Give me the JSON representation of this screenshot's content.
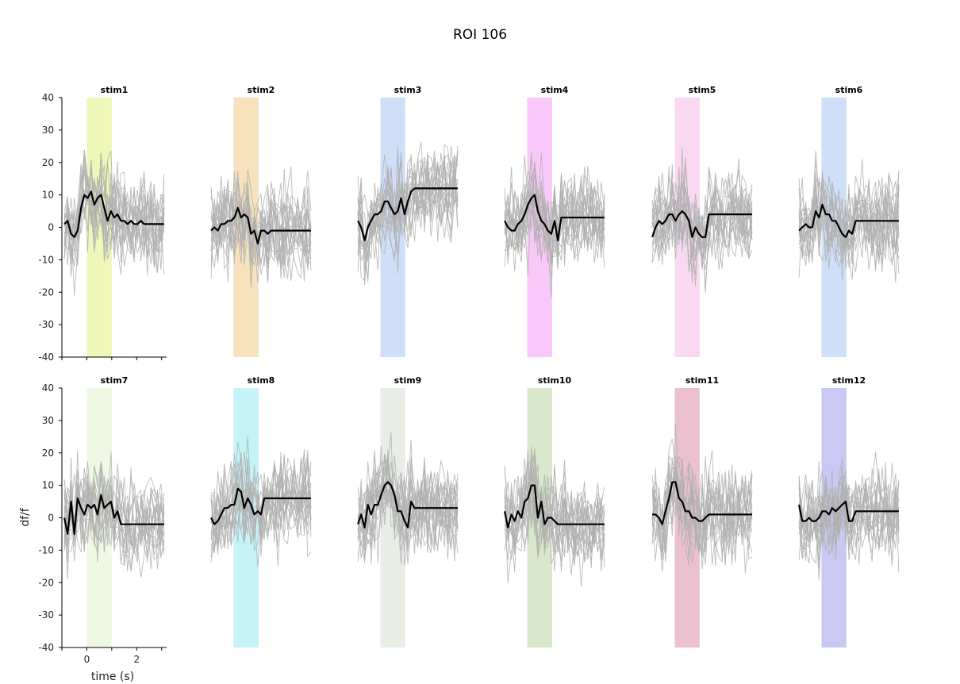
{
  "title": "ROI 106",
  "chart_data": {
    "type": "line",
    "layout": {
      "rows": 2,
      "cols": 6
    },
    "xlabel": "time (s)",
    "ylabel": "df/f",
    "ylim": [
      -40,
      40
    ],
    "xlim": [
      -1.0,
      3.2
    ],
    "yticks": [
      -40,
      -30,
      -20,
      -10,
      0,
      10,
      20,
      30,
      40
    ],
    "xticks": [
      0,
      2
    ],
    "x": [
      -0.9,
      -0.77,
      -0.63,
      -0.5,
      -0.37,
      -0.23,
      -0.1,
      0.03,
      0.17,
      0.3,
      0.43,
      0.57,
      0.7,
      0.83,
      0.97,
      1.1,
      1.23,
      1.37,
      1.5,
      1.63,
      1.77,
      1.9,
      2.03,
      2.17,
      2.3,
      2.43,
      2.57,
      2.7,
      2.83,
      2.97,
      3.1
    ],
    "trial_color": "#b0b0b0",
    "mean_color": "#000000",
    "stimulus_window": [
      0,
      1
    ],
    "panels": [
      {
        "name": "stim1",
        "shade_color": "#eef7b8",
        "mean": [
          1,
          2,
          -2,
          -3,
          -1,
          6,
          10,
          9,
          11,
          7,
          9,
          10,
          6,
          2,
          5,
          3,
          4,
          2,
          2,
          1,
          2,
          1,
          1,
          2,
          1,
          1,
          1,
          1,
          1,
          1,
          1
        ]
      },
      {
        "name": "stim2",
        "shade_color": "#f7e2bd",
        "mean": [
          -1,
          0,
          -1,
          1,
          1,
          2,
          2,
          3,
          6,
          3,
          4,
          3,
          -2,
          -1,
          -5,
          -1,
          -1,
          -2,
          -1,
          -1,
          -1,
          -1,
          -1,
          -1,
          -1,
          -1,
          -1,
          -1,
          -1,
          -1,
          -1
        ]
      },
      {
        "name": "stim3",
        "shade_color": "#cfdff8",
        "mean": [
          2,
          0,
          -4,
          0,
          2,
          4,
          4,
          5,
          8,
          8,
          6,
          4,
          5,
          9,
          4,
          8,
          11,
          12,
          12,
          12,
          12,
          12,
          12,
          12,
          12,
          12,
          12,
          12,
          12,
          12,
          12
        ]
      },
      {
        "name": "stim4",
        "shade_color": "#f8c8f8",
        "mean": [
          2,
          0,
          -1,
          -1,
          1,
          2,
          4,
          7,
          9,
          10,
          5,
          2,
          1,
          -1,
          -2,
          2,
          -4,
          3,
          3,
          3,
          3,
          3,
          3,
          3,
          3,
          3,
          3,
          3,
          3,
          3,
          3
        ]
      },
      {
        "name": "stim5",
        "shade_color": "#f9d9f1",
        "mean": [
          -3,
          0,
          2,
          1,
          2,
          4,
          4,
          2,
          4,
          5,
          4,
          2,
          -3,
          0,
          -2,
          -3,
          -3,
          4,
          4,
          4,
          4,
          4,
          4,
          4,
          4,
          4,
          4,
          4,
          4,
          4,
          4
        ]
      },
      {
        "name": "stim6",
        "shade_color": "#cfdff8",
        "mean": [
          -1,
          0,
          1,
          0,
          0,
          5,
          3,
          7,
          4,
          4,
          2,
          2,
          0,
          -2,
          -3,
          -1,
          -2,
          2,
          2,
          2,
          2,
          2,
          2,
          2,
          2,
          2,
          2,
          2,
          2,
          2,
          2
        ]
      },
      {
        "name": "stim7",
        "shade_color": "#eef8e2",
        "mean": [
          0,
          -5,
          5,
          -5,
          6,
          3,
          1,
          4,
          3,
          4,
          1,
          7,
          3,
          4,
          5,
          0,
          2,
          -2,
          -2,
          -2,
          -2,
          -2,
          -2,
          -2,
          -2,
          -2,
          -2,
          -2,
          -2,
          -2,
          -2
        ]
      },
      {
        "name": "stim8",
        "shade_color": "#c6f3f8",
        "mean": [
          0,
          -2,
          -1,
          1,
          3,
          3,
          4,
          4,
          9,
          8,
          3,
          6,
          4,
          1,
          2,
          1,
          6,
          6,
          6,
          6,
          6,
          6,
          6,
          6,
          6,
          6,
          6,
          6,
          6,
          6,
          6
        ]
      },
      {
        "name": "stim9",
        "shade_color": "#e8ede6",
        "mean": [
          -2,
          1,
          -3,
          4,
          1,
          4,
          4,
          7,
          10,
          11,
          10,
          7,
          2,
          2,
          -1,
          -3,
          5,
          3,
          3,
          3,
          3,
          3,
          3,
          3,
          3,
          3,
          3,
          3,
          3,
          3,
          3
        ]
      },
      {
        "name": "stim10",
        "shade_color": "#d9e8cb",
        "mean": [
          2,
          -3,
          1,
          -1,
          2,
          0,
          5,
          6,
          10,
          10,
          0,
          5,
          -2,
          0,
          0,
          -1,
          -2,
          -2,
          -2,
          -2,
          -2,
          -2,
          -2,
          -2,
          -2,
          -2,
          -2,
          -2,
          -2,
          -2,
          -2
        ]
      },
      {
        "name": "stim11",
        "shade_color": "#ecc1cf",
        "mean": [
          1,
          1,
          0,
          -2,
          2,
          6,
          11,
          11,
          6,
          5,
          2,
          2,
          0,
          0,
          -1,
          -1,
          0,
          1,
          1,
          1,
          1,
          1,
          1,
          1,
          1,
          1,
          1,
          1,
          1,
          1,
          1
        ]
      },
      {
        "name": "stim12",
        "shade_color": "#c9c9f4",
        "mean": [
          4,
          -1,
          -1,
          0,
          -1,
          -1,
          0,
          2,
          2,
          1,
          3,
          2,
          3,
          4,
          5,
          -1,
          -1,
          2,
          2,
          2,
          2,
          2,
          2,
          2,
          2,
          2,
          2,
          2,
          2,
          2,
          2
        ]
      }
    ]
  }
}
